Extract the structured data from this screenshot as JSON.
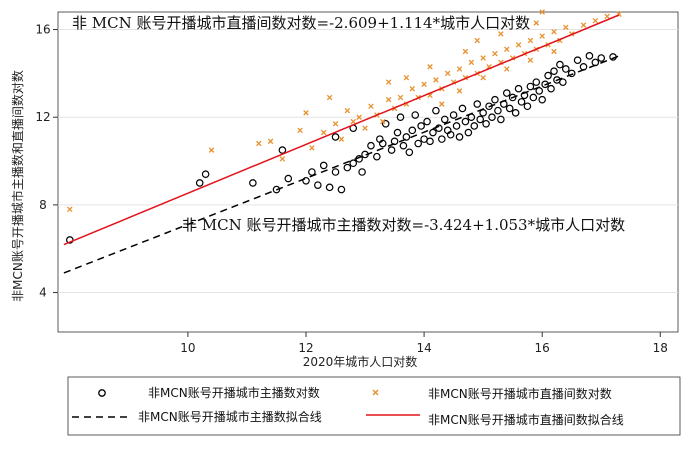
{
  "chart_data": {
    "type": "scatter",
    "xlabel": "2020年城市人口对数",
    "ylabel": "非MCN账号开播城市主播数和直播间数对数",
    "xlim": [
      7.8,
      18.3
    ],
    "ylim": [
      2.2,
      16.8
    ],
    "xticks": [
      10,
      12,
      14,
      16,
      18
    ],
    "yticks": [
      4,
      8,
      12,
      16
    ],
    "grid": true,
    "legend": "bottom",
    "annotations": [
      "非 MCN 账号开播城市直播间数对数=-2.609+1.114*城市人口对数",
      "非 MCN 账号开播城市主播数对数=-3.424+1.053*城市人口对数"
    ],
    "series": [
      {
        "name": "非MCN账号开播城市主播数对数",
        "marker": "circle",
        "color": "#000000",
        "points": [
          [
            8.0,
            6.4
          ],
          [
            10.2,
            9.0
          ],
          [
            10.3,
            9.4
          ],
          [
            11.1,
            9.0
          ],
          [
            11.5,
            8.7
          ],
          [
            11.6,
            10.5
          ],
          [
            11.7,
            9.2
          ],
          [
            12.0,
            9.1
          ],
          [
            12.1,
            9.5
          ],
          [
            12.2,
            8.9
          ],
          [
            12.3,
            9.8
          ],
          [
            12.4,
            8.8
          ],
          [
            12.5,
            9.5
          ],
          [
            12.6,
            8.7
          ],
          [
            12.7,
            9.7
          ],
          [
            12.8,
            9.9
          ],
          [
            12.9,
            10.1
          ],
          [
            12.5,
            11.1
          ],
          [
            12.8,
            11.5
          ],
          [
            12.95,
            9.5
          ],
          [
            13.0,
            10.3
          ],
          [
            13.1,
            10.7
          ],
          [
            13.2,
            10.2
          ],
          [
            13.25,
            11.0
          ],
          [
            13.3,
            10.8
          ],
          [
            13.35,
            11.7
          ],
          [
            13.45,
            10.5
          ],
          [
            13.5,
            10.9
          ],
          [
            13.55,
            11.3
          ],
          [
            13.6,
            12.0
          ],
          [
            13.65,
            10.7
          ],
          [
            13.7,
            11.1
          ],
          [
            13.75,
            10.4
          ],
          [
            13.8,
            11.4
          ],
          [
            13.85,
            12.1
          ],
          [
            13.9,
            10.8
          ],
          [
            13.95,
            11.6
          ],
          [
            14.0,
            11.0
          ],
          [
            14.05,
            11.8
          ],
          [
            14.1,
            10.9
          ],
          [
            14.15,
            11.3
          ],
          [
            14.2,
            12.3
          ],
          [
            14.25,
            11.5
          ],
          [
            14.3,
            11.0
          ],
          [
            14.35,
            11.9
          ],
          [
            14.4,
            11.4
          ],
          [
            14.45,
            11.2
          ],
          [
            14.5,
            12.1
          ],
          [
            14.55,
            11.6
          ],
          [
            14.6,
            11.1
          ],
          [
            14.65,
            12.4
          ],
          [
            14.7,
            11.8
          ],
          [
            14.75,
            11.3
          ],
          [
            14.8,
            12.0
          ],
          [
            14.85,
            11.6
          ],
          [
            14.9,
            12.6
          ],
          [
            14.95,
            11.9
          ],
          [
            15.0,
            12.2
          ],
          [
            15.05,
            11.7
          ],
          [
            15.1,
            12.5
          ],
          [
            15.15,
            12.0
          ],
          [
            15.2,
            12.8
          ],
          [
            15.25,
            12.3
          ],
          [
            15.3,
            11.9
          ],
          [
            15.35,
            12.6
          ],
          [
            15.4,
            13.1
          ],
          [
            15.45,
            12.4
          ],
          [
            15.5,
            12.9
          ],
          [
            15.55,
            12.2
          ],
          [
            15.6,
            13.3
          ],
          [
            15.65,
            12.7
          ],
          [
            15.7,
            13.0
          ],
          [
            15.75,
            12.5
          ],
          [
            15.8,
            13.4
          ],
          [
            15.85,
            12.9
          ],
          [
            15.9,
            13.6
          ],
          [
            15.95,
            13.2
          ],
          [
            16.0,
            12.8
          ],
          [
            16.05,
            13.5
          ],
          [
            16.1,
            13.9
          ],
          [
            16.15,
            13.3
          ],
          [
            16.2,
            14.1
          ],
          [
            16.25,
            13.7
          ],
          [
            16.3,
            14.4
          ],
          [
            16.35,
            13.6
          ],
          [
            16.4,
            14.2
          ],
          [
            16.5,
            14.0
          ],
          [
            16.6,
            14.6
          ],
          [
            16.7,
            14.3
          ],
          [
            16.8,
            14.8
          ],
          [
            16.9,
            14.5
          ],
          [
            17.0,
            14.7
          ],
          [
            17.2,
            14.75
          ]
        ]
      },
      {
        "name": "非MCN账号开播城市直播间数对数",
        "marker": "x",
        "color": "#e8912d",
        "points": [
          [
            8.0,
            7.8
          ],
          [
            10.4,
            10.5
          ],
          [
            11.2,
            10.8
          ],
          [
            11.4,
            10.9
          ],
          [
            11.6,
            10.1
          ],
          [
            11.9,
            11.4
          ],
          [
            12.1,
            10.6
          ],
          [
            12.3,
            11.3
          ],
          [
            12.5,
            11.7
          ],
          [
            12.6,
            11.0
          ],
          [
            12.7,
            12.3
          ],
          [
            12.8,
            11.8
          ],
          [
            12.9,
            12.0
          ],
          [
            13.0,
            11.5
          ],
          [
            13.1,
            12.5
          ],
          [
            13.2,
            12.1
          ],
          [
            13.3,
            11.8
          ],
          [
            13.4,
            12.8
          ],
          [
            13.5,
            12.4
          ],
          [
            13.6,
            12.9
          ],
          [
            13.7,
            12.6
          ],
          [
            13.8,
            13.3
          ],
          [
            13.9,
            12.9
          ],
          [
            14.0,
            13.5
          ],
          [
            14.1,
            13.0
          ],
          [
            14.2,
            13.7
          ],
          [
            14.3,
            13.3
          ],
          [
            14.4,
            14.0
          ],
          [
            14.5,
            13.6
          ],
          [
            14.6,
            14.2
          ],
          [
            14.7,
            13.8
          ],
          [
            14.8,
            14.5
          ],
          [
            14.9,
            14.0
          ],
          [
            15.0,
            14.7
          ],
          [
            15.1,
            14.3
          ],
          [
            15.2,
            14.9
          ],
          [
            15.3,
            14.5
          ],
          [
            15.4,
            15.1
          ],
          [
            15.5,
            14.7
          ],
          [
            15.6,
            15.3
          ],
          [
            15.7,
            14.9
          ],
          [
            15.8,
            15.5
          ],
          [
            15.9,
            15.1
          ],
          [
            16.0,
            15.7
          ],
          [
            16.1,
            15.3
          ],
          [
            16.2,
            15.9
          ],
          [
            16.3,
            15.5
          ],
          [
            16.4,
            16.1
          ],
          [
            16.5,
            15.8
          ],
          [
            16.7,
            16.2
          ],
          [
            16.9,
            16.4
          ],
          [
            17.1,
            16.6
          ],
          [
            17.3,
            16.7
          ],
          [
            14.3,
            12.6
          ],
          [
            14.6,
            13.2
          ],
          [
            15.0,
            13.8
          ],
          [
            15.4,
            14.2
          ],
          [
            15.8,
            14.6
          ],
          [
            16.2,
            15.0
          ],
          [
            13.7,
            13.8
          ],
          [
            14.1,
            14.3
          ],
          [
            14.7,
            15.0
          ],
          [
            15.3,
            15.8
          ],
          [
            15.9,
            16.3
          ],
          [
            12.0,
            12.2
          ],
          [
            12.4,
            12.9
          ],
          [
            13.4,
            13.6
          ],
          [
            14.9,
            15.5
          ],
          [
            16.0,
            16.8
          ]
        ]
      }
    ],
    "fits": [
      {
        "name": "非MCN账号开播城市主播数拟合线",
        "style": "dashed",
        "color": "#000000",
        "intercept": -3.424,
        "slope": 1.053,
        "x_range": [
          7.9,
          17.3
        ]
      },
      {
        "name": "非MCN账号开播城市直播间数拟合线",
        "style": "solid",
        "color": "#e3121b",
        "intercept": -2.609,
        "slope": 1.114,
        "x_range": [
          7.9,
          17.3
        ]
      }
    ]
  }
}
